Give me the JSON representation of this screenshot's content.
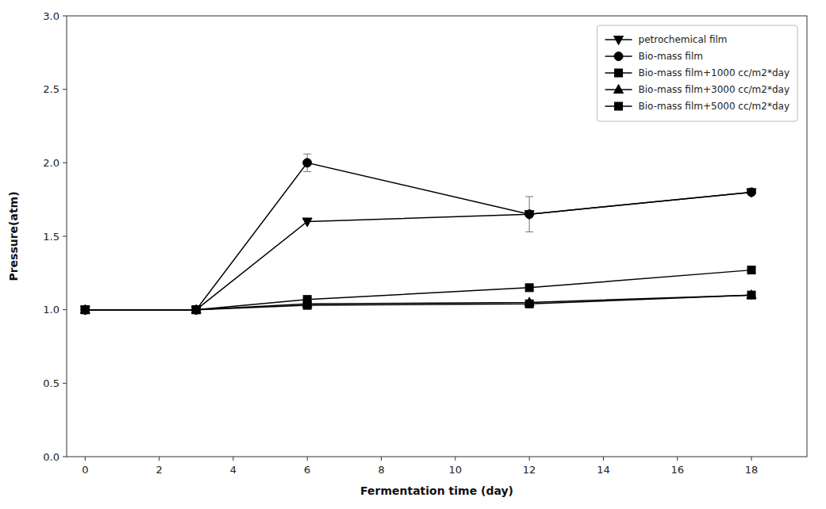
{
  "chart_data": {
    "type": "line",
    "xlabel": "Fermentation time (day)",
    "ylabel": "Pressure(atm)",
    "xlim": [
      -0.5,
      19.5
    ],
    "ylim": [
      0.0,
      3.0
    ],
    "xticks": [
      0,
      2,
      4,
      6,
      8,
      10,
      12,
      14,
      16,
      18
    ],
    "yticks": [
      {
        "value": 0.0,
        "label": "0.0"
      },
      0.5,
      {
        "value": 1.0,
        "label": "1.0"
      },
      1.5,
      {
        "value": 2.0,
        "label": "2.0"
      },
      2.5,
      {
        "value": 3.0,
        "label": "3.0"
      }
    ],
    "grid": false,
    "legend": "upper right",
    "x": [
      0,
      3,
      6,
      12,
      18
    ],
    "series": [
      {
        "name": "petrochemical film",
        "color": "#000000",
        "marker": "triangle-down",
        "values": [
          1.0,
          1.0,
          1.6,
          1.65,
          1.8
        ],
        "errors": [
          null,
          null,
          null,
          0.12,
          null
        ]
      },
      {
        "name": "Bio-mass film",
        "color": "#000000",
        "marker": "circle",
        "values": [
          1.0,
          1.0,
          2.0,
          1.65,
          1.8
        ],
        "errors": [
          null,
          null,
          0.06,
          null,
          null
        ]
      },
      {
        "name": "Bio-mass film+1000 cc/m2*day",
        "color": "#000000",
        "marker": "square",
        "values": [
          1.0,
          1.0,
          1.07,
          1.15,
          1.27
        ],
        "errors": [
          null,
          null,
          null,
          null,
          null
        ]
      },
      {
        "name": "Bio-mass film+3000 cc/m2*day",
        "color": "#000000",
        "marker": "triangle-up",
        "values": [
          1.0,
          1.0,
          1.04,
          1.05,
          1.1
        ],
        "errors": [
          null,
          null,
          null,
          null,
          null
        ]
      },
      {
        "name": "Bio-mass film+5000 cc/m2*day",
        "color": "#000000",
        "marker": "square",
        "values": [
          1.0,
          1.0,
          1.03,
          1.04,
          1.1
        ],
        "errors": [
          null,
          null,
          null,
          null,
          null
        ]
      }
    ]
  }
}
